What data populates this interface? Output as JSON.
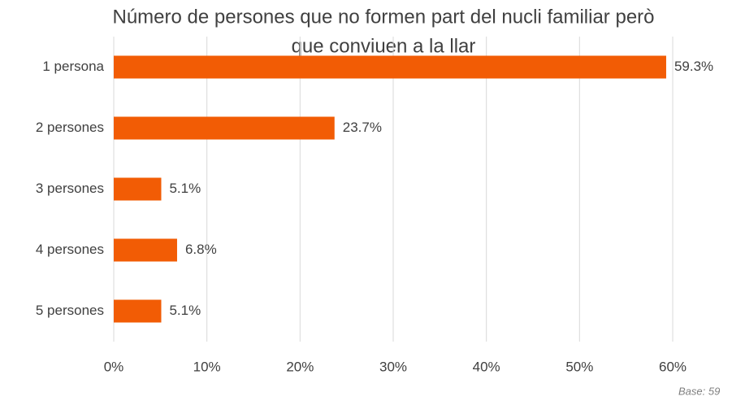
{
  "chart_data": {
    "type": "bar",
    "orientation": "horizontal",
    "title": [
      "Número de persones que no formen part del nucli familiar però",
      "que conviuen a la llar"
    ],
    "categories": [
      "1 persona",
      "2 persones",
      "3 persones",
      "4 persones",
      "5 persones"
    ],
    "values": [
      59.3,
      23.7,
      5.1,
      6.8,
      5.1
    ],
    "value_labels": [
      "59.3%",
      "23.7%",
      "5.1%",
      "6.8%",
      "5.1%"
    ],
    "color": "#f25c05",
    "xlim": [
      0,
      60
    ],
    "xticks": [
      {
        "value": 0,
        "label": "0%"
      },
      {
        "value": 10,
        "label": "10%"
      },
      {
        "value": 20,
        "label": "20%"
      },
      {
        "value": 30,
        "label": "30%"
      },
      {
        "value": 40,
        "label": "40%"
      },
      {
        "value": 50,
        "label": "50%"
      },
      {
        "value": 60,
        "label": "60%"
      }
    ],
    "grid": true,
    "note": "Base: 59"
  }
}
